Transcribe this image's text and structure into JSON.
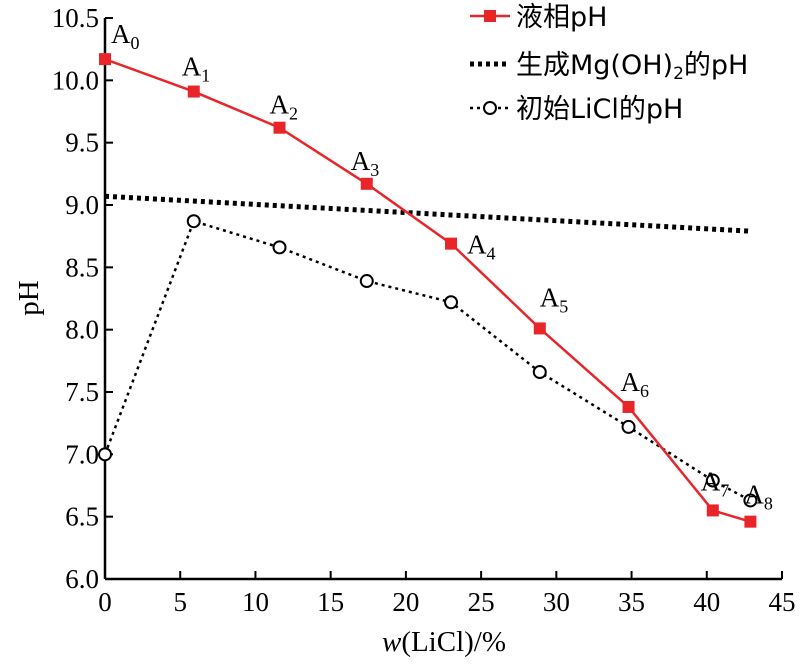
{
  "chart_data": {
    "type": "line",
    "title": "",
    "xlabel_italic": "w",
    "xlabel_rest": "(LiCl)/%",
    "ylabel": "pH",
    "xlim": [
      0,
      45
    ],
    "ylim": [
      6.0,
      10.5
    ],
    "xticks": [
      0,
      5,
      10,
      15,
      20,
      25,
      30,
      35,
      40,
      45
    ],
    "yticks": [
      "6.0",
      "6.5",
      "7.0",
      "7.5",
      "8.0",
      "8.5",
      "9.0",
      "9.5",
      "10.0",
      "10.5"
    ],
    "grid": false,
    "legend_position": "top-right",
    "series": [
      {
        "name": "液相pH",
        "style": "solid",
        "marker": "square",
        "color": "#e8262a",
        "x": [
          0,
          5.9,
          11.6,
          17.4,
          23.0,
          28.9,
          34.8,
          40.4,
          42.9
        ],
        "y": [
          10.17,
          9.91,
          9.62,
          9.17,
          8.69,
          8.01,
          7.38,
          6.55,
          6.46
        ],
        "point_labels": [
          {
            "base": "A",
            "sub": "0"
          },
          {
            "base": "A",
            "sub": "1"
          },
          {
            "base": "A",
            "sub": "2"
          },
          {
            "base": "A",
            "sub": "3"
          },
          {
            "base": "A",
            "sub": "4"
          },
          {
            "base": "A",
            "sub": "5"
          },
          {
            "base": "A",
            "sub": "6"
          },
          {
            "base": "A",
            "sub": "7"
          },
          {
            "base": "A",
            "sub": "8"
          }
        ]
      },
      {
        "name_parts": [
          "生成Mg(OH)",
          "2",
          "的pH"
        ],
        "style": "dotted-thick",
        "marker": "none",
        "color": "#000000",
        "x": [
          0,
          42.9
        ],
        "y": [
          9.07,
          8.79
        ]
      },
      {
        "name": "初始LiCl的pH",
        "style": "dotted",
        "marker": "open-circle",
        "color": "#000000",
        "x": [
          0,
          5.9,
          11.6,
          17.4,
          23.0,
          28.9,
          34.8,
          40.4,
          42.9
        ],
        "y": [
          7.0,
          8.87,
          8.66,
          8.39,
          8.22,
          7.66,
          7.22,
          6.79,
          6.63
        ]
      }
    ]
  }
}
